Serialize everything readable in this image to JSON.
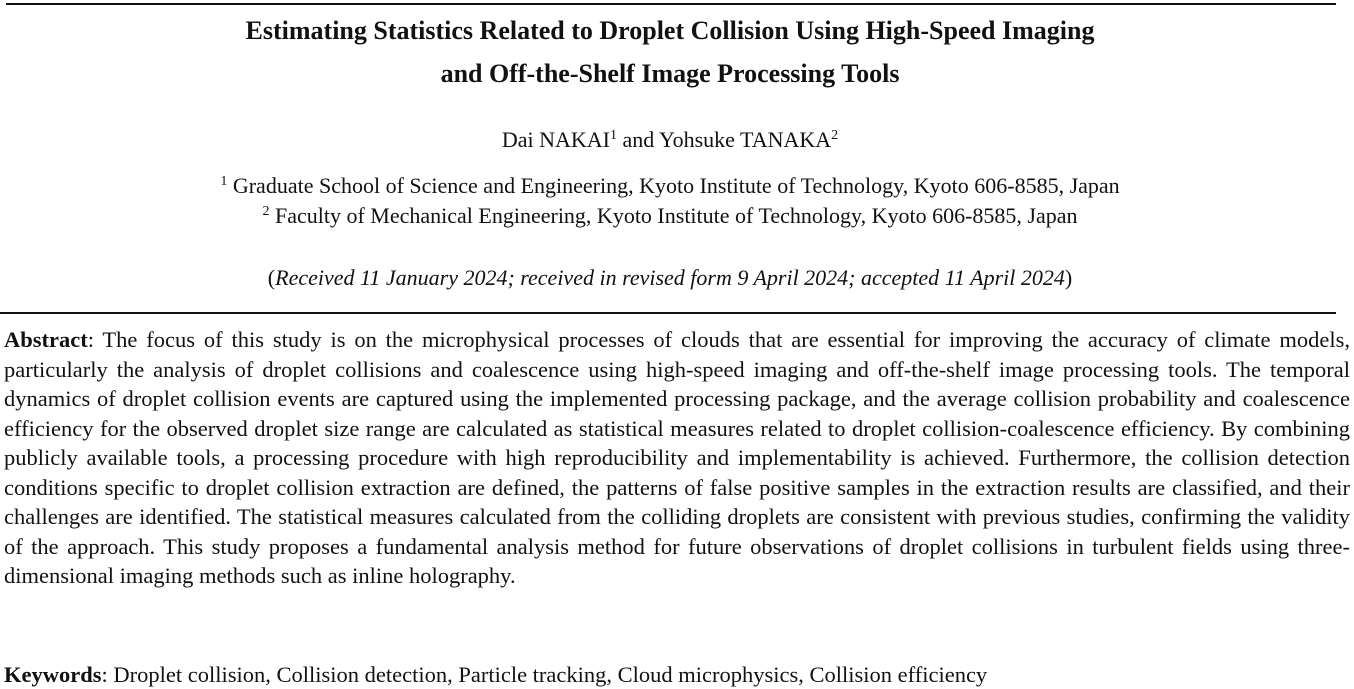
{
  "header": {
    "title_lines": [
      "Estimating Statistics Related to Droplet Collision Using High-Speed Imaging",
      "and Off-the-Shelf Image Processing Tools"
    ],
    "authors": [
      {
        "name": "Dai NAKAI",
        "sup": "1"
      },
      {
        "name": "Yohsuke TANAKA",
        "sup": "2"
      }
    ],
    "author_joiner": "and",
    "affiliations": [
      {
        "sup": "1",
        "text": "Graduate School of Science and Engineering, Kyoto Institute of Technology, Kyoto 606-8585, Japan"
      },
      {
        "sup": "2",
        "text": "Faculty of Mechanical Engineering, Kyoto Institute of Technology, Kyoto 606-8585, Japan"
      }
    ],
    "received": {
      "open": "(",
      "text": "Received 11 January 2024; received in revised form 9 April 2024; accepted 11 April 2024",
      "close": ")"
    }
  },
  "abstract": {
    "label": "Abstract",
    "text": ": The focus of this study is on the microphysical processes of clouds that are essential for improving the accuracy of climate models, particularly the analysis of droplet collisions and coalescence using high-speed imaging and off-the-shelf image processing tools. The temporal dynamics of droplet collision events are captured using the implemented processing package, and the average collision probability and coalescence efficiency for the observed droplet size range are calculated as statistical measures related to droplet collision-coalescence efficiency. By combining publicly available tools, a processing procedure with high reproducibility and implementability is achieved. Furthermore, the collision detection conditions specific to droplet collision extraction are defined, the patterns of false positive samples in the extraction results are classified, and their challenges are identified. The statistical measures calculated from the colliding droplets are consistent with previous studies, confirming the validity of the approach. This study proposes a fundamental analysis method for future observations of droplet collisions in turbulent fields using three-dimensional imaging methods such as inline holography."
  },
  "keywords": {
    "label": "Keywords",
    "text": ": Droplet collision, Collision detection, Particle tracking, Cloud microphysics, Collision efficiency"
  }
}
